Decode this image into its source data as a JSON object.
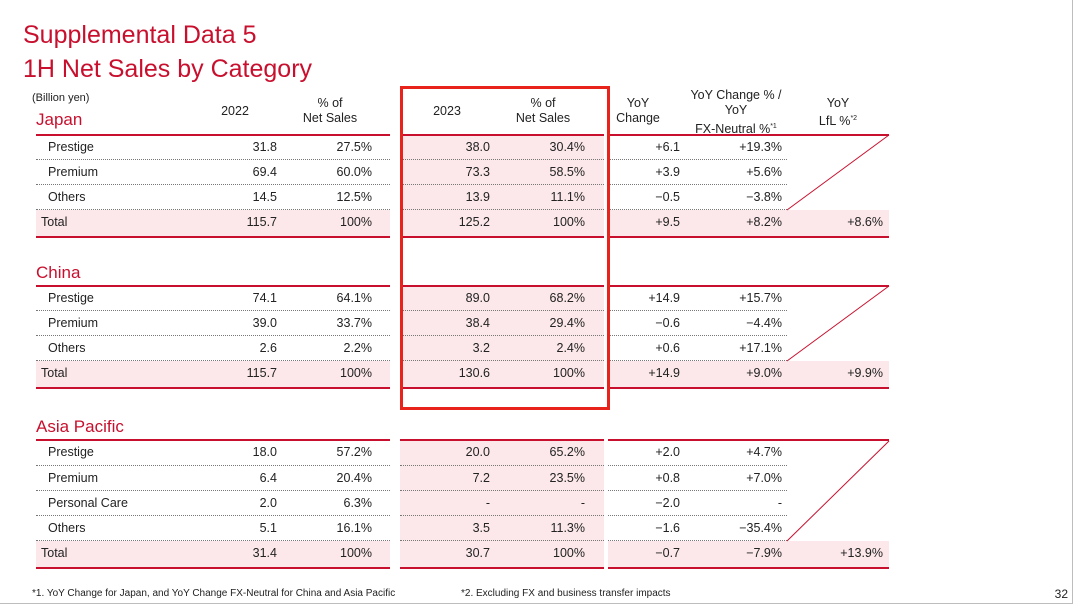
{
  "title_line1": "Supplemental Data 5",
  "title_line2": "1H Net Sales by Category",
  "unit": "(Billion yen)",
  "headers": {
    "y2022": "2022",
    "pct_a": "% of",
    "pct_b": "Net Sales",
    "y2023": "2023",
    "yoy_a": "YoY",
    "yoy_b": "Change",
    "fx_a": "YoY Change % /",
    "fx_b": "YoY",
    "fx_c": "FX-Neutral %",
    "fx_note": "*1",
    "lfl_a": "YoY",
    "lfl_b": "LfL %",
    "lfl_note": "*2"
  },
  "regions": [
    {
      "name": "Japan",
      "rows": [
        {
          "label": "Prestige",
          "v2022": "31.8",
          "p2022": "27.5%",
          "v2023": "38.0",
          "p2023": "30.4%",
          "yoy": "+6.1",
          "fx": "+19.3%",
          "lfl": ""
        },
        {
          "label": "Premium",
          "v2022": "69.4",
          "p2022": "60.0%",
          "v2023": "73.3",
          "p2023": "58.5%",
          "yoy": "+3.9",
          "fx": "+5.6%",
          "lfl": ""
        },
        {
          "label": "Others",
          "v2022": "14.5",
          "p2022": "12.5%",
          "v2023": "13.9",
          "p2023": "11.1%",
          "yoy": "−0.5",
          "fx": "−3.8%",
          "lfl": ""
        },
        {
          "label": "Total",
          "v2022": "115.7",
          "p2022": "100%",
          "v2023": "125.2",
          "p2023": "100%",
          "yoy": "+9.5",
          "fx": "+8.2%",
          "lfl": "+8.6%"
        }
      ]
    },
    {
      "name": "China",
      "rows": [
        {
          "label": "Prestige",
          "v2022": "74.1",
          "p2022": "64.1%",
          "v2023": "89.0",
          "p2023": "68.2%",
          "yoy": "+14.9",
          "fx": "+15.7%",
          "lfl": ""
        },
        {
          "label": "Premium",
          "v2022": "39.0",
          "p2022": "33.7%",
          "v2023": "38.4",
          "p2023": "29.4%",
          "yoy": "−0.6",
          "fx": "−4.4%",
          "lfl": ""
        },
        {
          "label": "Others",
          "v2022": "2.6",
          "p2022": "2.2%",
          "v2023": "3.2",
          "p2023": "2.4%",
          "yoy": "+0.6",
          "fx": "+17.1%",
          "lfl": ""
        },
        {
          "label": "Total",
          "v2022": "115.7",
          "p2022": "100%",
          "v2023": "130.6",
          "p2023": "100%",
          "yoy": "+14.9",
          "fx": "+9.0%",
          "lfl": "+9.9%"
        }
      ]
    },
    {
      "name": "Asia Pacific",
      "rows": [
        {
          "label": "Prestige",
          "v2022": "18.0",
          "p2022": "57.2%",
          "v2023": "20.0",
          "p2023": "65.2%",
          "yoy": "+2.0",
          "fx": "+4.7%",
          "lfl": ""
        },
        {
          "label": "Premium",
          "v2022": "6.4",
          "p2022": "20.4%",
          "v2023": "7.2",
          "p2023": "23.5%",
          "yoy": "+0.8",
          "fx": "+7.0%",
          "lfl": ""
        },
        {
          "label": "Personal Care",
          "v2022": "2.0",
          "p2022": "6.3%",
          "v2023": "-",
          "p2023": "-",
          "yoy": "−2.0",
          "fx": "-",
          "lfl": ""
        },
        {
          "label": "Others",
          "v2022": "5.1",
          "p2022": "16.1%",
          "v2023": "3.5",
          "p2023": "11.3%",
          "yoy": "−1.6",
          "fx": "−35.4%",
          "lfl": ""
        },
        {
          "label": "Total",
          "v2022": "31.4",
          "p2022": "100%",
          "v2023": "30.7",
          "p2023": "100%",
          "yoy": "−0.7",
          "fx": "−7.9%",
          "lfl": "+13.9%"
        }
      ]
    }
  ],
  "footnote1": "*1. YoY Change for Japan, and YoY Change FX-Neutral for China and Asia Pacific",
  "footnote2": "*2. Excluding FX and business transfer impacts",
  "page_number": "32",
  "colors": {
    "accent": "#c8102e",
    "highlight_box": "#e8231c",
    "pink_fill": "#fce8ea"
  }
}
